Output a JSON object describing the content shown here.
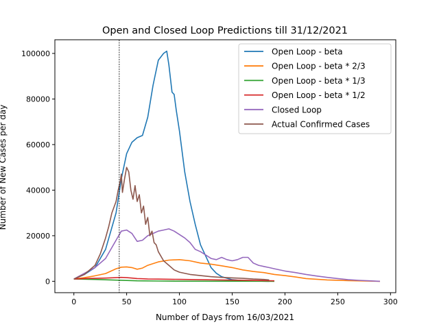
{
  "chart_data": {
    "type": "line",
    "title": "Open and Closed Loop Predictions till 31/12/2021",
    "xlabel": "Number of Days from 16/03/2021",
    "ylabel": "Number of New Cases per day",
    "xlim": [
      -18,
      305
    ],
    "ylim": [
      -5000,
      106000
    ],
    "xticks": [
      0,
      50,
      100,
      150,
      200,
      250,
      300
    ],
    "yticks": [
      0,
      20000,
      40000,
      60000,
      80000,
      100000
    ],
    "xtick_labels": [
      "0",
      "50",
      "100",
      "150",
      "200",
      "250",
      "300"
    ],
    "ytick_labels": [
      "0",
      "20000",
      "40000",
      "60000",
      "80000",
      "100000"
    ],
    "vline_x": 43,
    "legend_position": "upper right",
    "grid": false,
    "series": [
      {
        "name": "Open Loop - beta",
        "color": "#1f77b4",
        "x": [
          0,
          10,
          20,
          30,
          40,
          45,
          50,
          55,
          60,
          65,
          70,
          75,
          80,
          85,
          88,
          90,
          93,
          95,
          97,
          100,
          105,
          110,
          115,
          120,
          125,
          130,
          135,
          140,
          150,
          160,
          170,
          185
        ],
        "y": [
          1000,
          3000,
          6000,
          14000,
          30000,
          45000,
          56000,
          61000,
          63000,
          64000,
          72000,
          86000,
          97000,
          100000,
          101000,
          95000,
          83000,
          82000,
          75000,
          66000,
          48000,
          35000,
          25000,
          16000,
          11000,
          6000,
          3500,
          2000,
          700,
          300,
          100,
          0
        ]
      },
      {
        "name": "Open Loop - beta * 2/3",
        "color": "#ff7f0e",
        "x": [
          0,
          10,
          20,
          30,
          40,
          45,
          50,
          55,
          60,
          65,
          70,
          80,
          90,
          100,
          110,
          120,
          130,
          140,
          150,
          160,
          170,
          180,
          190,
          200,
          210,
          220,
          240,
          260,
          290
        ],
        "y": [
          1000,
          1600,
          2400,
          3400,
          5500,
          6200,
          6300,
          6000,
          5300,
          5800,
          7000,
          8500,
          9300,
          9500,
          9000,
          8000,
          7500,
          6800,
          6000,
          5000,
          4300,
          3800,
          3000,
          2500,
          1900,
          1200,
          600,
          300,
          0
        ]
      },
      {
        "name": "Open Loop - beta * 1/3",
        "color": "#2ca02c",
        "x": [
          0,
          20,
          40,
          60,
          80,
          100,
          130,
          160,
          190
        ],
        "y": [
          1000,
          800,
          500,
          200,
          100,
          50,
          20,
          10,
          0
        ]
      },
      {
        "name": "Open Loop - beta * 1/2",
        "color": "#d62728",
        "x": [
          0,
          10,
          20,
          30,
          40,
          45,
          50,
          55,
          60,
          65,
          70,
          80,
          100,
          120,
          150,
          180,
          190
        ],
        "y": [
          1000,
          1200,
          1300,
          1400,
          1600,
          1700,
          1600,
          1400,
          1200,
          1100,
          1000,
          950,
          850,
          700,
          500,
          300,
          200
        ]
      },
      {
        "name": "Closed Loop",
        "color": "#9467bd",
        "x": [
          0,
          10,
          20,
          30,
          40,
          45,
          50,
          55,
          60,
          65,
          70,
          75,
          80,
          85,
          90,
          95,
          100,
          105,
          110,
          115,
          120,
          125,
          130,
          135,
          140,
          145,
          150,
          155,
          160,
          165,
          170,
          175,
          180,
          185,
          190,
          200,
          210,
          220,
          230,
          240,
          250,
          260,
          270,
          280,
          290
        ],
        "y": [
          1000,
          3500,
          6000,
          10000,
          18000,
          22000,
          22500,
          21000,
          17500,
          18000,
          20000,
          21000,
          22000,
          22500,
          23000,
          22000,
          20500,
          19000,
          17000,
          14000,
          13000,
          11500,
          10000,
          9500,
          10500,
          9500,
          9000,
          9500,
          10500,
          10500,
          8000,
          7000,
          6500,
          6000,
          5500,
          4500,
          3800,
          3000,
          2300,
          1700,
          1200,
          700,
          400,
          200,
          0
        ]
      },
      {
        "name": "Actual Confirmed Cases",
        "color": "#8c564b",
        "x": [
          0,
          10,
          20,
          25,
          30,
          33,
          36,
          40,
          42,
          44,
          45,
          46,
          48,
          50,
          52,
          54,
          56,
          58,
          60,
          62,
          64,
          66,
          68,
          70,
          72,
          74,
          76,
          78,
          80,
          85,
          90,
          95,
          100,
          110,
          120,
          130,
          140,
          150,
          160,
          170,
          180,
          185
        ],
        "y": [
          1000,
          3000,
          7000,
          12000,
          19000,
          24000,
          30000,
          35000,
          40000,
          44000,
          47000,
          39000,
          45000,
          50000,
          48000,
          40000,
          36000,
          42000,
          35000,
          38000,
          30000,
          33000,
          25000,
          28000,
          20000,
          22000,
          17000,
          16000,
          13000,
          9000,
          7000,
          5000,
          4000,
          3000,
          2500,
          2000,
          1700,
          1500,
          1300,
          1000,
          800,
          600
        ]
      }
    ]
  }
}
